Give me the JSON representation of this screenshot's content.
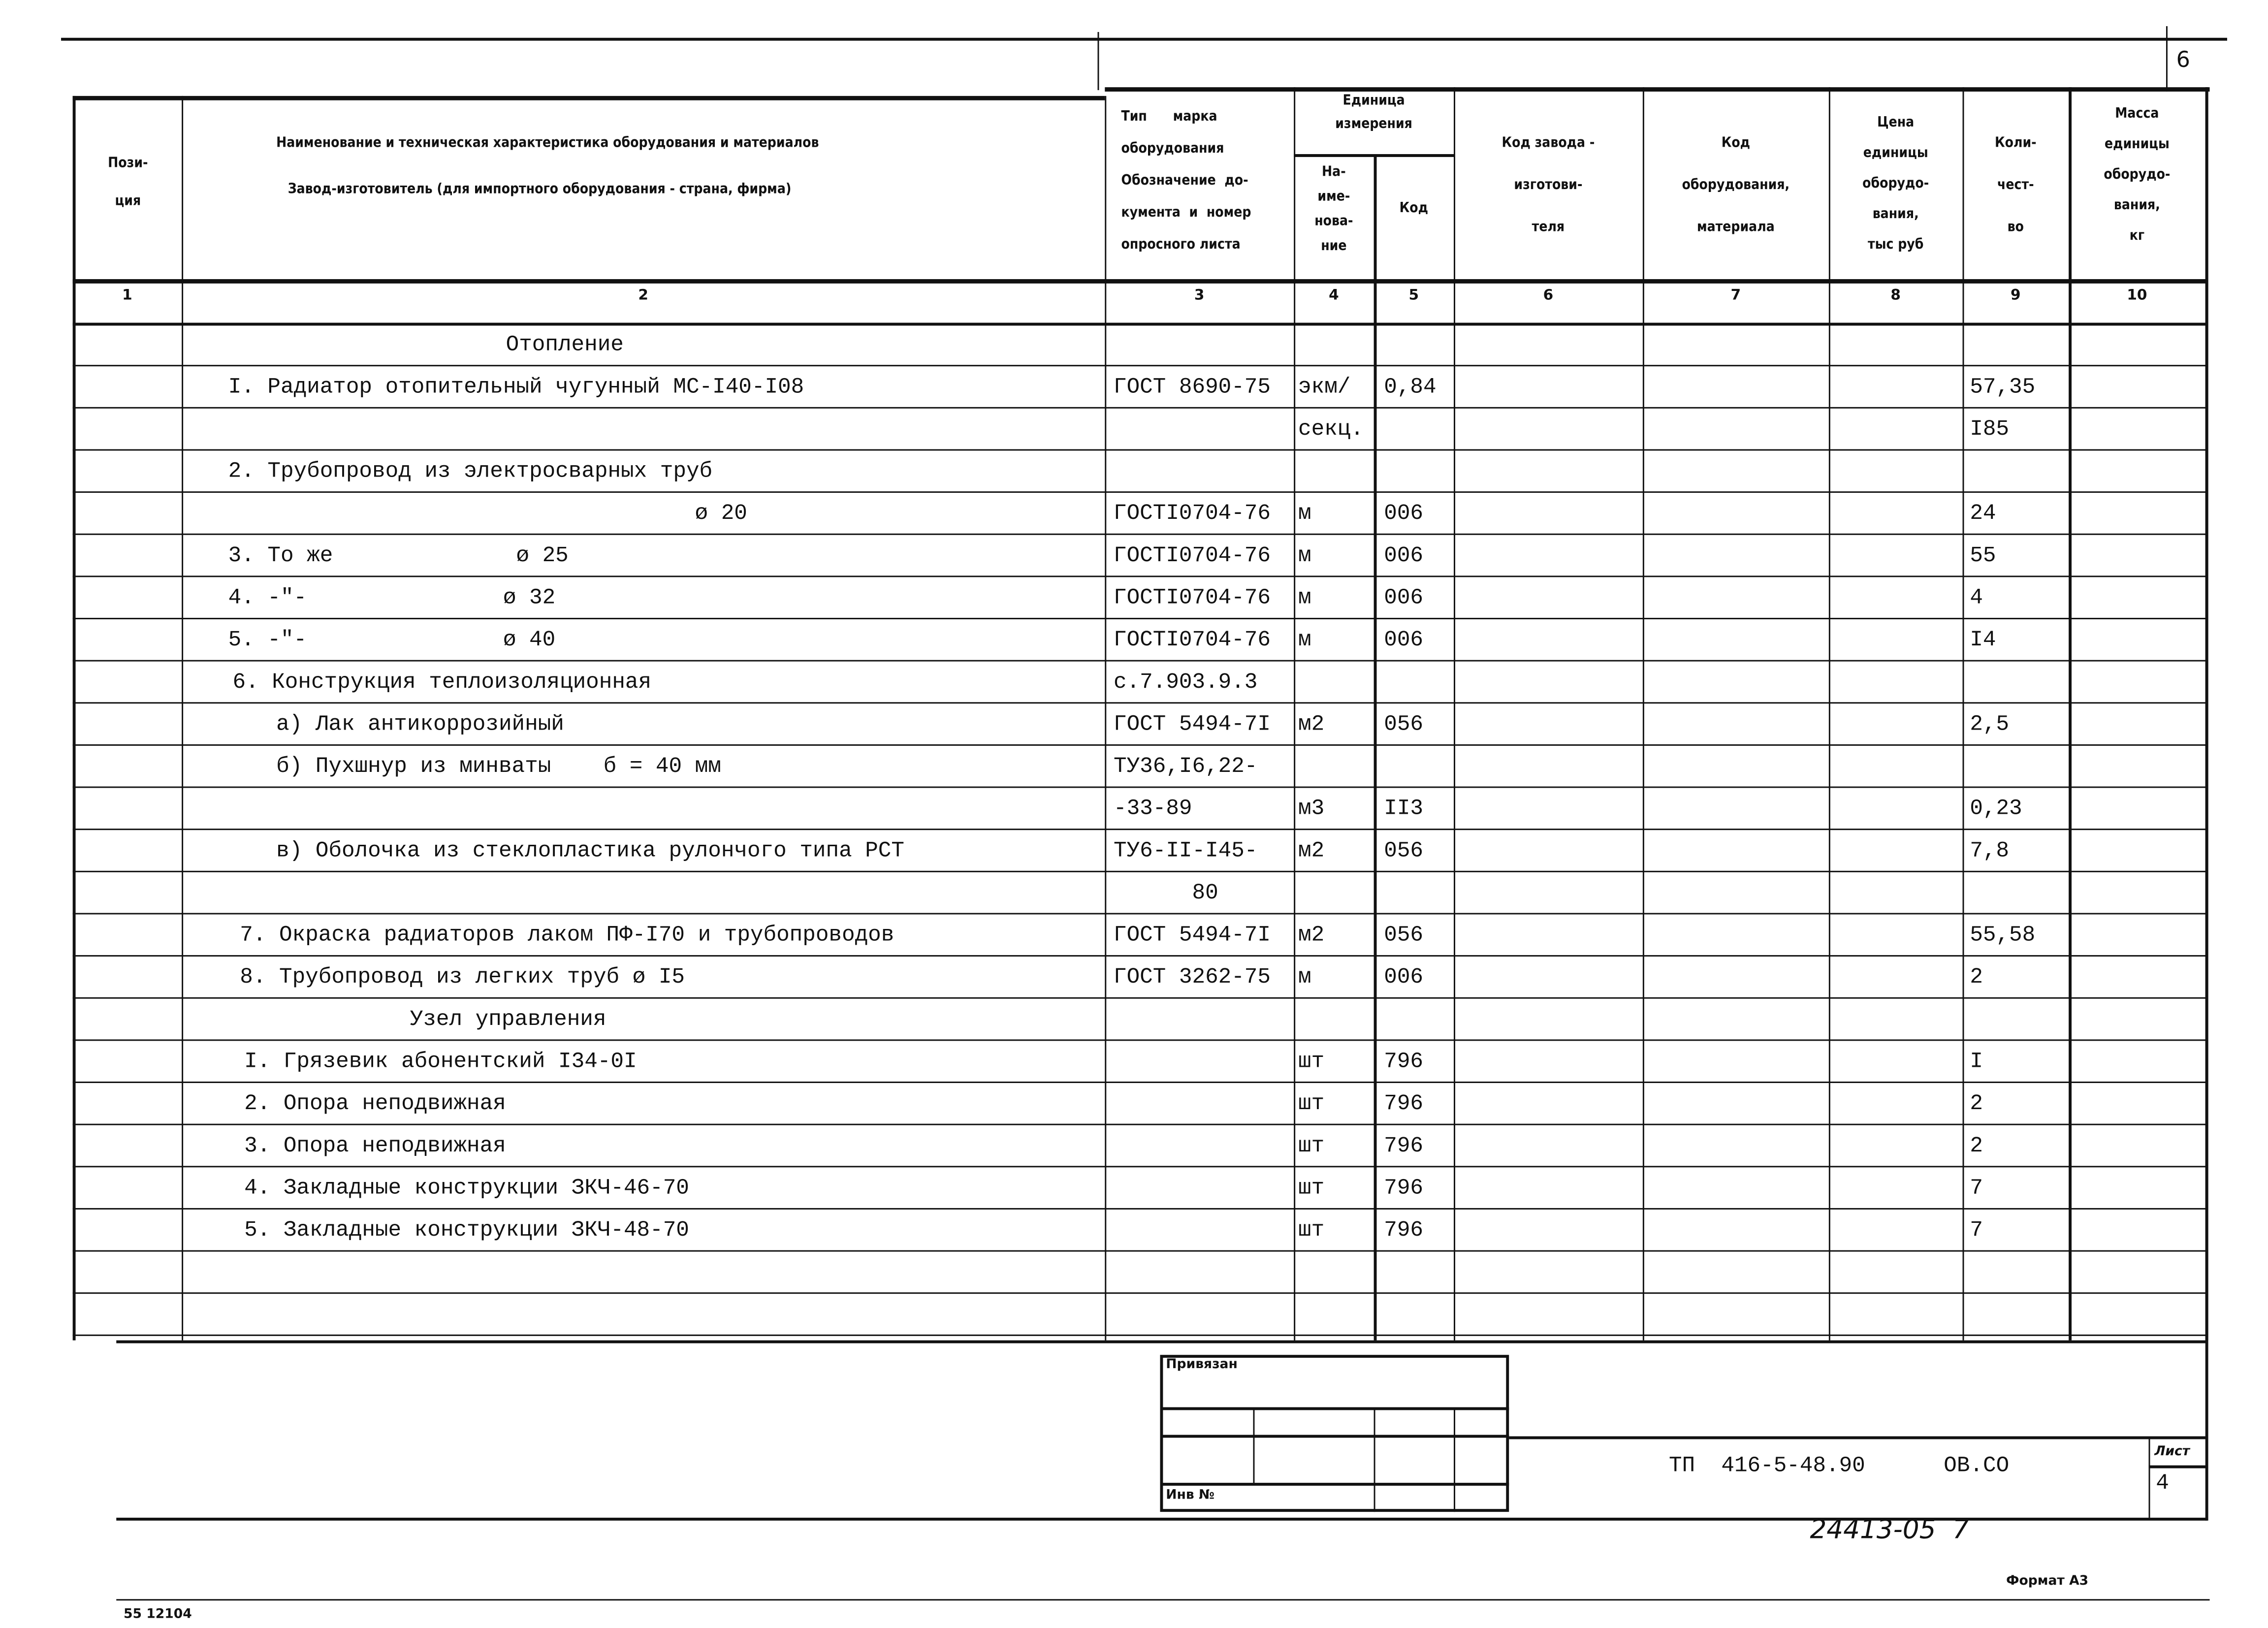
{
  "page_number": "6",
  "header": {
    "col1": "Пози-\nция",
    "col2_line1": "Наименование и техническая характеристика  оборудования и материалов",
    "col2_line2": "Завод-изготовитель  (для импортного оборудования -  страна, фирма)",
    "col3": "Тип      марка\nоборудования\nОбозначение  до-\nкумента  и  номер\nопросного листа",
    "col45_group": "Единица\nизмерения",
    "col4": "На-\nиме-\nнова-\nние",
    "col5": "Код",
    "col6": "Код  завода -\nизготови-\nтеля",
    "col7": "Код\nоборудования,\nматериала",
    "col8": "Цена\nединицы\nоборудо-\nвания,\nтыс  руб",
    "col9": "Коли-\nчест-\nво",
    "col10": "Масса\nединицы\nоборудо-\nвания,\nкг",
    "numbers": [
      "1",
      "2",
      "3",
      "4",
      "5",
      "6",
      "7",
      "8",
      "9",
      "10"
    ]
  },
  "rows": [
    {
      "name": "Отопление",
      "doc": "",
      "unit": "",
      "code": "",
      "qty": ""
    },
    {
      "name": "I. Радиатор отопительный чугунный МС-I40-I08",
      "doc": "ГОСТ 8690-75",
      "unit": "экм/",
      "code": "0,84",
      "qty": "57,35"
    },
    {
      "name": "",
      "doc": "",
      "unit": "секц.",
      "code": "",
      "qty": "I85"
    },
    {
      "name": "2. Трубопровод из электросварных труб",
      "doc": "",
      "unit": "",
      "code": "",
      "qty": ""
    },
    {
      "name": "ø 20",
      "doc": "ГОСТI0704-76",
      "unit": "м",
      "code": "006",
      "qty": "24"
    },
    {
      "name": "3. То же              ø 25",
      "doc": "ГОСТI0704-76",
      "unit": "м",
      "code": "006",
      "qty": "55"
    },
    {
      "name": "4. -\"-               ø 32",
      "doc": "ГОСТI0704-76",
      "unit": "м",
      "code": "006",
      "qty": "4"
    },
    {
      "name": "5. -\"-               ø 40",
      "doc": "ГОСТI0704-76",
      "unit": "м",
      "code": "006",
      "qty": "I4"
    },
    {
      "name": "6. Конструкция теплоизоляционная",
      "doc": "с.7.903.9.3",
      "unit": "",
      "code": "",
      "qty": ""
    },
    {
      "name": "а) Лак антикоррозийный",
      "doc": "ГОСТ 5494-7I",
      "unit": "м2",
      "code": "056",
      "qty": "2,5"
    },
    {
      "name": "б) Пухшнур из минваты    б = 40 мм",
      "doc": "ТУ36,I6,22-",
      "unit": "",
      "code": "",
      "qty": ""
    },
    {
      "name": "",
      "doc": "-33-89",
      "unit": "м3",
      "code": "II3",
      "qty": "0,23"
    },
    {
      "name": "в) Оболочка из стеклопластика рулончого типа РСТ",
      "doc": "ТУ6-II-I45-",
      "unit": "м2",
      "code": "056",
      "qty": "7,8"
    },
    {
      "name": "",
      "doc": "      80",
      "unit": "",
      "code": "",
      "qty": ""
    },
    {
      "name": "7. Окраска радиаторов лаком ПФ-I70 и трубопроводов",
      "doc": "ГОСТ 5494-7I",
      "unit": "м2",
      "code": "056",
      "qty": "55,58"
    },
    {
      "name": "8. Трубопровод из легких труб ø I5",
      "doc": "ГОСТ 3262-75",
      "unit": "м",
      "code": "006",
      "qty": "2"
    },
    {
      "name": "Узел управления",
      "doc": "",
      "unit": "",
      "code": "",
      "qty": ""
    },
    {
      "name": "I. Грязевик абонентский I34-0I",
      "doc": "",
      "unit": "шт",
      "code": "796",
      "qty": "I"
    },
    {
      "name": "2. Опора неподвижная",
      "doc": "",
      "unit": "шт",
      "code": "796",
      "qty": "2"
    },
    {
      "name": "3. Опора неподвижная",
      "doc": "",
      "unit": "шт",
      "code": "796",
      "qty": "2"
    },
    {
      "name": "4. Закладные конструкции ЗКЧ-46-70",
      "doc": "",
      "unit": "шт",
      "code": "796",
      "qty": "7"
    },
    {
      "name": "5. Закладные конструкции ЗКЧ-48-70",
      "doc": "",
      "unit": "шт",
      "code": "796",
      "qty": "7"
    },
    {
      "name": "",
      "doc": "",
      "unit": "",
      "code": "",
      "qty": ""
    },
    {
      "name": "",
      "doc": "",
      "unit": "",
      "code": "",
      "qty": ""
    }
  ],
  "title_block": {
    "bound_label": "Привязан",
    "inv_label": "Инв  №",
    "designation": "ТП  416-5-48.90      ОВ.СО",
    "sheet_label": "Лист",
    "sheet_number": "4",
    "handwritten_number": "24413-05  7",
    "format_label": "Формат  А3",
    "stamp_number": "55 12104"
  }
}
